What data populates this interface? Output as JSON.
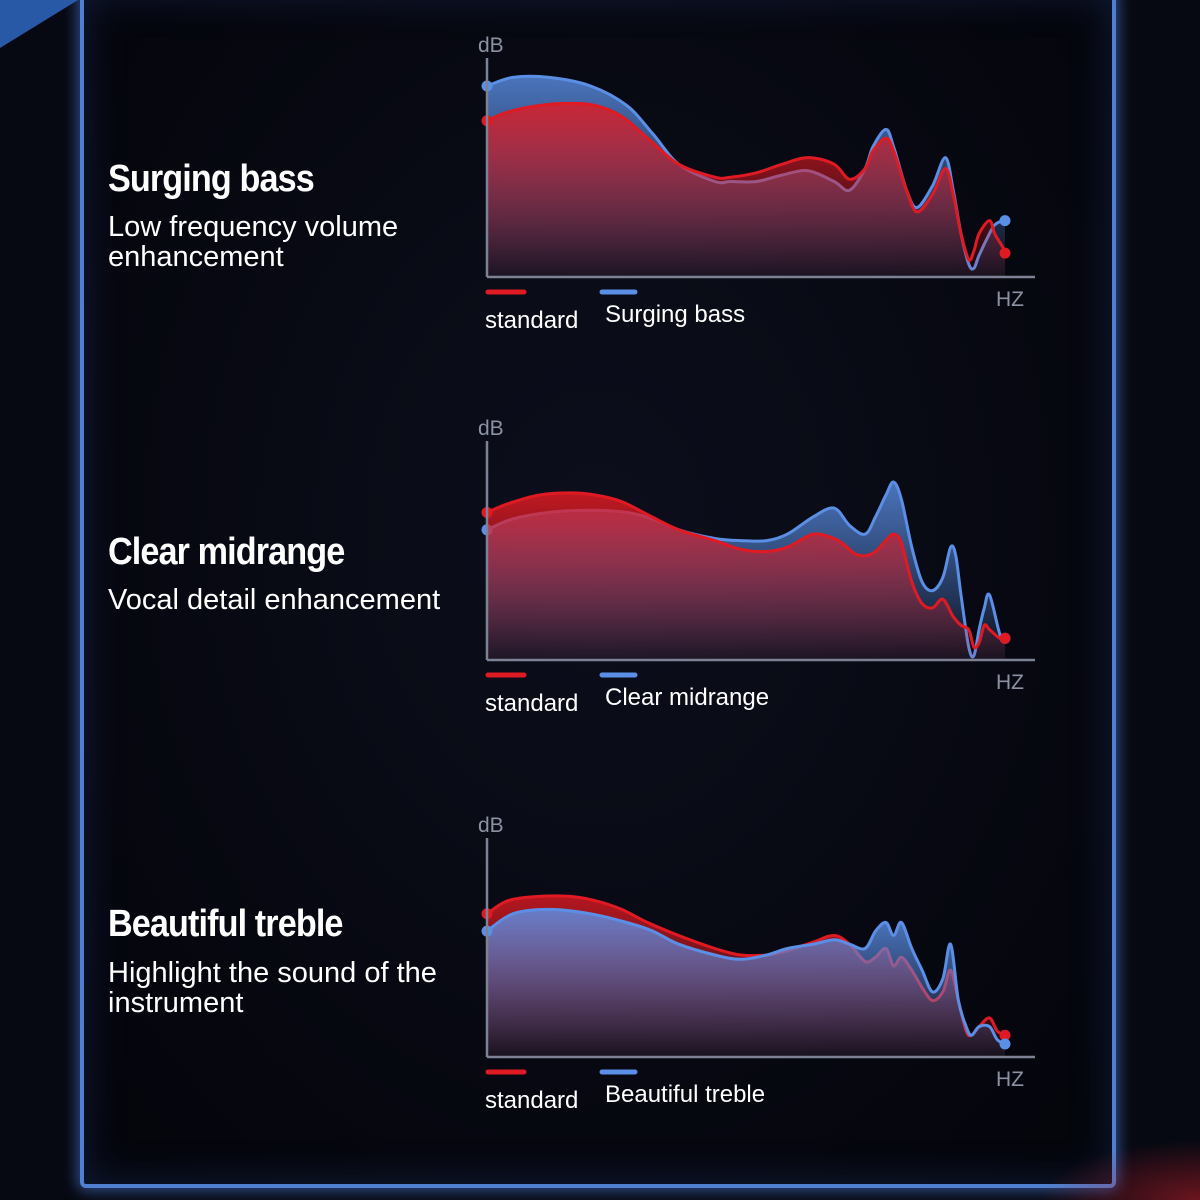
{
  "theme": {
    "standard_color": "#e01a22",
    "enhanced_color": "#5b8fe6"
  },
  "panels": [
    {
      "heading": "Surging bass",
      "description": "Low frequency volume enhancement",
      "legend": {
        "standard": "standard",
        "enhanced": "Surging bass"
      }
    },
    {
      "heading": "Clear midrange",
      "description": "Vocal detail enhancement",
      "legend": {
        "standard": "standard",
        "enhanced": "Clear midrange"
      }
    },
    {
      "heading": "Beautiful treble",
      "description": "Highlight the sound of the instrument",
      "legend": {
        "standard": "standard",
        "enhanced": "Beautiful treble"
      }
    }
  ],
  "chart_data": [
    {
      "type": "area",
      "title": "Surging bass",
      "xlabel": "HZ",
      "ylabel": "dB",
      "grid": false,
      "legend_position": "bottom",
      "xlim": [
        0,
        100
      ],
      "ylim": [
        0,
        100
      ],
      "front_series": "standard",
      "series": [
        {
          "name": "standard",
          "color": "#e01a22",
          "x": [
            0,
            4,
            10,
            16,
            21,
            26,
            31,
            37,
            44,
            47,
            52,
            57,
            62,
            67,
            70,
            73,
            74.5,
            77,
            78.5,
            81,
            83,
            86,
            88.5,
            90,
            91.5,
            93,
            94,
            95,
            97,
            98,
            99.5,
            100
          ],
          "y": [
            72,
            76,
            79,
            80,
            79,
            74,
            64,
            52,
            46,
            46,
            48,
            52,
            55,
            52,
            45,
            50,
            58,
            64,
            58,
            40,
            30,
            38,
            50,
            38,
            20,
            8,
            12,
            20,
            26,
            20,
            14,
            11
          ]
        },
        {
          "name": "Surging bass",
          "color": "#5b8fe6",
          "x": [
            0,
            5,
            12,
            20,
            27,
            32,
            37,
            44,
            47,
            52,
            57,
            62,
            67,
            70,
            73,
            74.5,
            77,
            78.5,
            81,
            83,
            86,
            88.5,
            90,
            91.5,
            93,
            94,
            95,
            97,
            98,
            99.5,
            100
          ],
          "y": [
            88,
            92,
            92,
            88,
            79,
            66,
            52,
            44,
            44,
            44,
            47,
            49,
            44,
            40,
            50,
            60,
            68,
            60,
            40,
            32,
            42,
            55,
            40,
            20,
            6,
            4,
            10,
            20,
            24,
            26,
            26
          ]
        }
      ]
    },
    {
      "type": "area",
      "title": "Clear midrange",
      "xlabel": "HZ",
      "ylabel": "dB",
      "grid": false,
      "legend_position": "bottom",
      "xlim": [
        0,
        100
      ],
      "ylim": [
        0,
        100
      ],
      "front_series": "standard",
      "series": [
        {
          "name": "standard",
          "color": "#e01a22",
          "x": [
            0,
            4,
            10,
            16,
            21,
            26,
            31,
            37,
            44,
            49,
            54,
            58,
            63,
            67,
            69,
            71,
            73,
            75,
            77,
            78.5,
            80,
            82,
            84,
            86,
            88,
            90,
            91.5,
            93,
            94,
            95,
            96,
            97,
            99,
            100
          ],
          "y": [
            68,
            72,
            76,
            77,
            76,
            73,
            67,
            60,
            55,
            51,
            50,
            52,
            58,
            56,
            53,
            49,
            48,
            50,
            55,
            58,
            54,
            36,
            26,
            24,
            28,
            20,
            16,
            14,
            6,
            8,
            16,
            14,
            10,
            10
          ]
        },
        {
          "name": "Clear midrange",
          "color": "#5b8fe6",
          "x": [
            0,
            5,
            12,
            20,
            27,
            32,
            37,
            44,
            49,
            54,
            58,
            63,
            67,
            70,
            73,
            75,
            77,
            78.5,
            80,
            82,
            84,
            86,
            88,
            89.5,
            90.5,
            91.5,
            93,
            94,
            95,
            96,
            97,
            99,
            100
          ],
          "y": [
            60,
            65,
            68,
            69,
            68,
            65,
            60,
            56,
            55,
            55,
            58,
            66,
            70,
            62,
            58,
            66,
            76,
            82,
            74,
            52,
            36,
            32,
            38,
            52,
            48,
            30,
            6,
            2,
            14,
            24,
            30,
            12,
            10
          ]
        }
      ]
    },
    {
      "type": "area",
      "title": "Beautiful treble",
      "xlabel": "HZ",
      "ylabel": "dB",
      "grid": false,
      "legend_position": "bottom",
      "xlim": [
        0,
        100
      ],
      "ylim": [
        0,
        100
      ],
      "front_series": "Beautiful treble",
      "series": [
        {
          "name": "standard",
          "color": "#e01a22",
          "x": [
            0,
            4,
            10,
            16,
            21,
            26,
            31,
            37,
            44,
            49,
            54,
            58,
            63,
            67,
            70,
            73,
            75,
            77,
            78.5,
            80,
            82,
            84,
            86,
            88,
            89.5,
            91,
            92.5,
            93.5,
            95,
            97,
            98.5,
            100
          ],
          "y": [
            66,
            72,
            74,
            74,
            72,
            68,
            62,
            56,
            50,
            47,
            47,
            49,
            53,
            56,
            52,
            44,
            46,
            50,
            42,
            46,
            40,
            32,
            26,
            30,
            40,
            26,
            12,
            10,
            14,
            18,
            12,
            10
          ]
        },
        {
          "name": "Beautiful treble",
          "color": "#5b8fe6",
          "x": [
            0,
            5,
            12,
            20,
            27,
            32,
            37,
            44,
            49,
            54,
            58,
            63,
            67,
            70,
            73,
            75,
            77,
            78.5,
            80,
            82,
            84,
            86,
            88,
            89.5,
            91,
            92.5,
            93.5,
            95,
            97,
            98.5,
            100
          ],
          "y": [
            58,
            66,
            68,
            66,
            62,
            58,
            52,
            47,
            45,
            47,
            50,
            52,
            54,
            52,
            50,
            58,
            62,
            56,
            62,
            50,
            40,
            30,
            36,
            52,
            26,
            14,
            10,
            14,
            14,
            8,
            6
          ]
        }
      ]
    }
  ]
}
